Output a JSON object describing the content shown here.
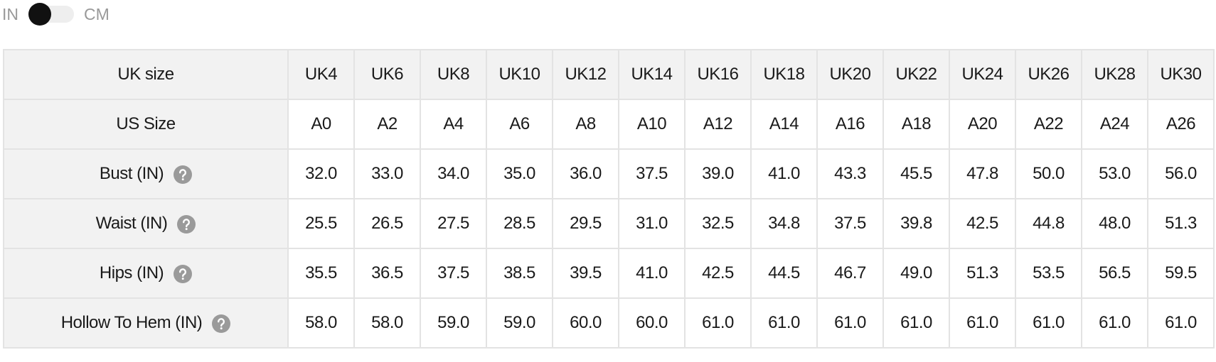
{
  "unit_toggle": {
    "left": "IN",
    "right": "CM"
  },
  "table": {
    "header": {
      "label": "UK size",
      "cells": [
        "UK4",
        "UK6",
        "UK8",
        "UK10",
        "UK12",
        "UK14",
        "UK16",
        "UK18",
        "UK20",
        "UK22",
        "UK24",
        "UK26",
        "UK28",
        "UK30"
      ]
    },
    "rows": [
      {
        "label": "US Size",
        "help": false,
        "cells": [
          "A0",
          "A2",
          "A4",
          "A6",
          "A8",
          "A10",
          "A12",
          "A14",
          "A16",
          "A18",
          "A20",
          "A22",
          "A24",
          "A26"
        ]
      },
      {
        "label": "Bust (IN)",
        "help": true,
        "cells": [
          "32.0",
          "33.0",
          "34.0",
          "35.0",
          "36.0",
          "37.5",
          "39.0",
          "41.0",
          "43.3",
          "45.5",
          "47.8",
          "50.0",
          "53.0",
          "56.0"
        ]
      },
      {
        "label": "Waist (IN)",
        "help": true,
        "cells": [
          "25.5",
          "26.5",
          "27.5",
          "28.5",
          "29.5",
          "31.0",
          "32.5",
          "34.8",
          "37.5",
          "39.8",
          "42.5",
          "44.8",
          "48.0",
          "51.3"
        ]
      },
      {
        "label": "Hips (IN)",
        "help": true,
        "cells": [
          "35.5",
          "36.5",
          "37.5",
          "38.5",
          "39.5",
          "41.0",
          "42.5",
          "44.5",
          "46.7",
          "49.0",
          "51.3",
          "53.5",
          "56.5",
          "59.5"
        ]
      },
      {
        "label": "Hollow To Hem (IN)",
        "help": true,
        "cells": [
          "58.0",
          "58.0",
          "59.0",
          "59.0",
          "60.0",
          "60.0",
          "61.0",
          "61.0",
          "61.0",
          "61.0",
          "61.0",
          "61.0",
          "61.0",
          "61.0"
        ]
      }
    ]
  }
}
